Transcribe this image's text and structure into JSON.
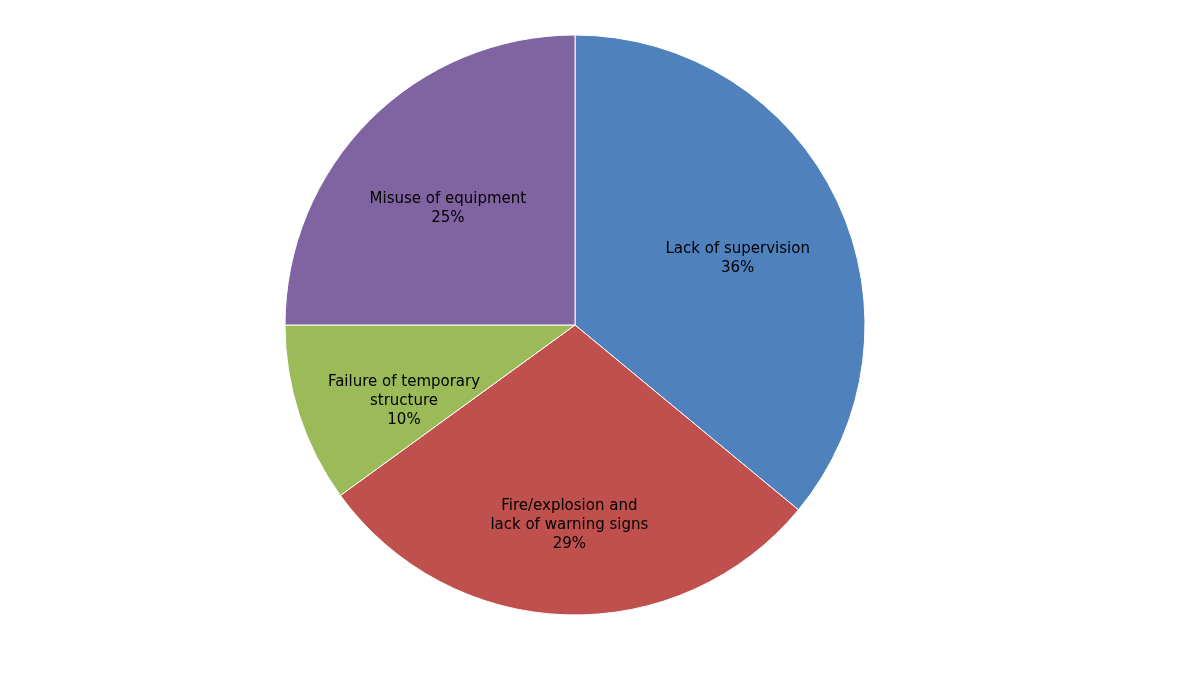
{
  "chart_data": {
    "type": "pie",
    "categories": [
      "Lack of supervision",
      "Fire/explosion and lack of warning signs",
      "Failure of temporary structure",
      "Misuse of equipment"
    ],
    "values": [
      36,
      29,
      10,
      25
    ],
    "value_labels": [
      "36%",
      "29%",
      "10%",
      "25%"
    ],
    "colors": [
      "#4f81bd",
      "#c0504d",
      "#9bbb59",
      "#8064a2"
    ],
    "legend": false
  }
}
